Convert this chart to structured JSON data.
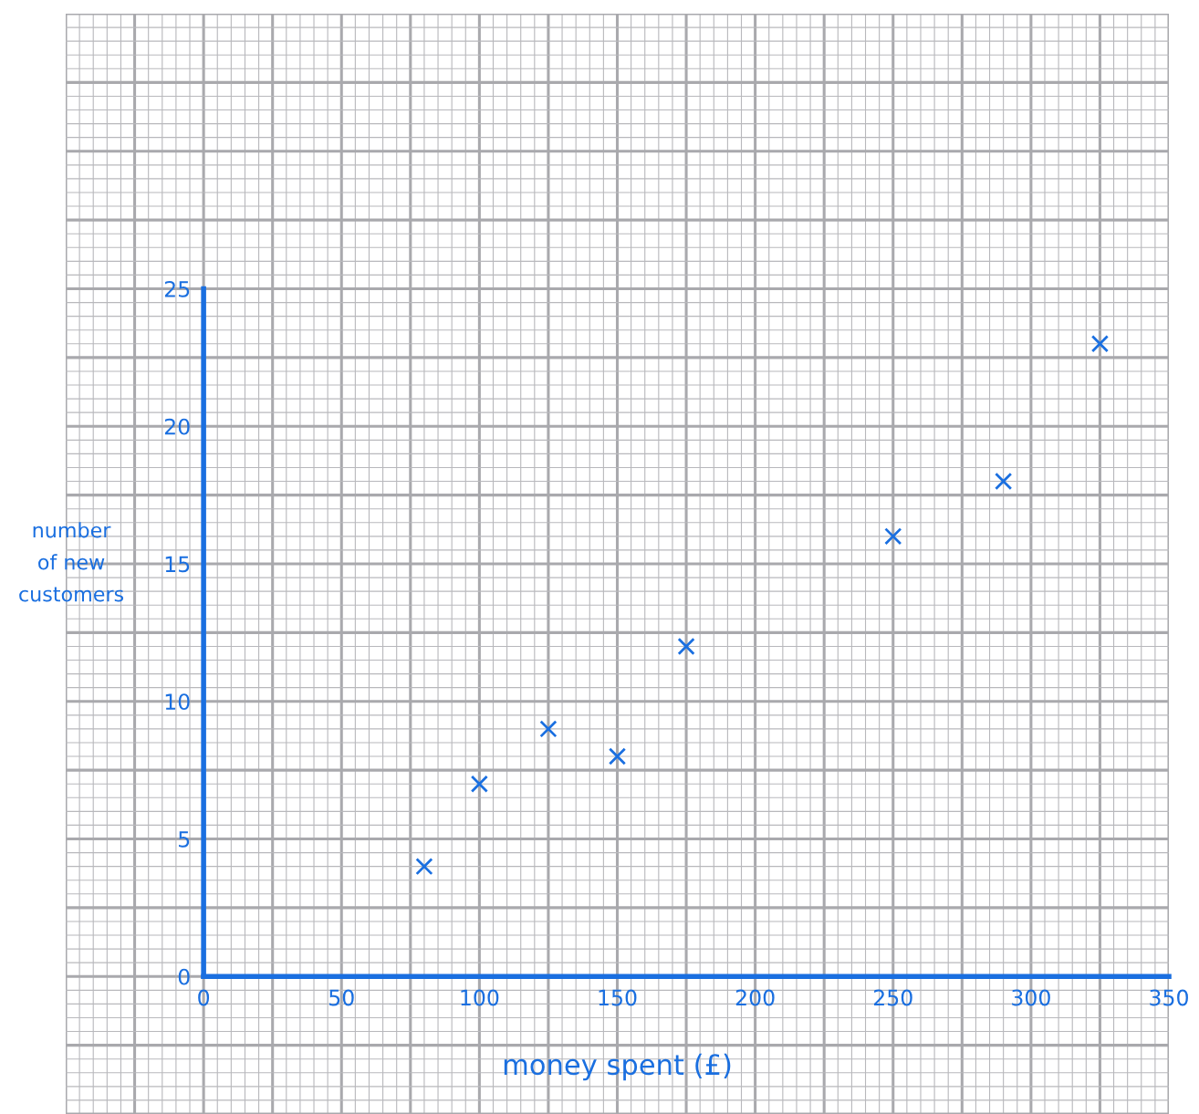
{
  "chart_data": {
    "type": "scatter",
    "xlabel": "money spent (£)",
    "ylabel": "number\nof new\ncustomers",
    "x": [
      80,
      100,
      125,
      150,
      175,
      250,
      290,
      325
    ],
    "series": [
      {
        "color": "#1a6fe0",
        "values": [
          4,
          7,
          9,
          8,
          12,
          16,
          18,
          23
        ]
      }
    ],
    "xlim": [
      -50,
      350
    ],
    "ylim": [
      -5,
      35
    ],
    "xticks": [
      0,
      50,
      100,
      150,
      200,
      250,
      300,
      350
    ],
    "yticks": [
      0,
      5,
      10,
      15,
      20,
      25
    ],
    "grid": true,
    "marker": "cross",
    "legend": false
  }
}
